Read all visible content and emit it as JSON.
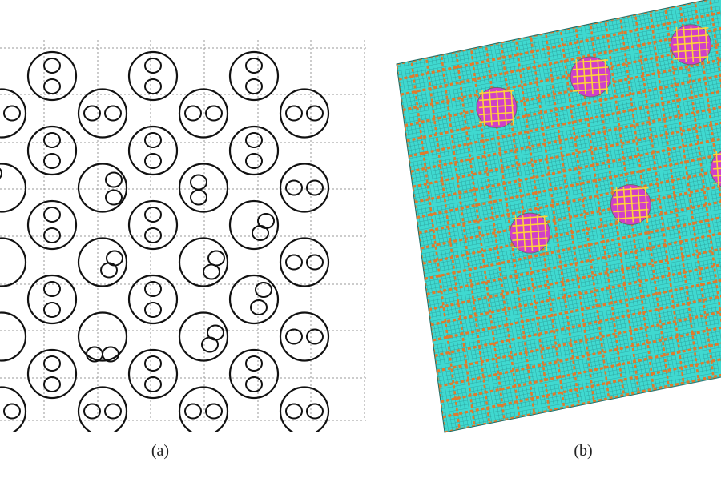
{
  "captions": {
    "a": "(a)",
    "b": "(b)"
  },
  "panel_a": {
    "stroke_color": "#111111",
    "grid_color": "#9a9a9a",
    "cells": [
      {
        "col": 1,
        "row": 0,
        "pins": "v"
      },
      {
        "col": 3,
        "row": 0,
        "pins": "v"
      },
      {
        "col": 5,
        "row": 0,
        "pins": "v"
      },
      {
        "col": 0,
        "row": 1,
        "pins": "h"
      },
      {
        "col": 2,
        "row": 1,
        "pins": "h"
      },
      {
        "col": 4,
        "row": 1,
        "pins": "h"
      },
      {
        "col": 6,
        "row": 1,
        "pins": "h"
      },
      {
        "col": 1,
        "row": 2,
        "pins": "v"
      },
      {
        "col": 3,
        "row": 2,
        "pins": "v"
      },
      {
        "col": 5,
        "row": 2,
        "pins": "v"
      },
      {
        "col": 0,
        "row": 3,
        "pins": "ul"
      },
      {
        "col": 2,
        "row": 3,
        "pins": "r"
      },
      {
        "col": 4,
        "row": 3,
        "pins": "lv"
      },
      {
        "col": 6,
        "row": 3,
        "pins": "h"
      },
      {
        "col": 1,
        "row": 4,
        "pins": "v"
      },
      {
        "col": 3,
        "row": 4,
        "pins": "v"
      },
      {
        "col": 5,
        "row": 4,
        "pins": "dr"
      },
      {
        "col": 0,
        "row": 5,
        "pins": "none"
      },
      {
        "col": 2,
        "row": 5,
        "pins": "dr"
      },
      {
        "col": 4,
        "row": 5,
        "pins": "ur"
      },
      {
        "col": 6,
        "row": 5,
        "pins": "h"
      },
      {
        "col": 1,
        "row": 6,
        "pins": "v"
      },
      {
        "col": 3,
        "row": 6,
        "pins": "v"
      },
      {
        "col": 5,
        "row": 6,
        "pins": "rv"
      },
      {
        "col": 0,
        "row": 7,
        "pins": "none"
      },
      {
        "col": 2,
        "row": 7,
        "pins": "bot"
      },
      {
        "col": 4,
        "row": 7,
        "pins": "dr"
      },
      {
        "col": 6,
        "row": 7,
        "pins": "h"
      },
      {
        "col": 1,
        "row": 8,
        "pins": "v"
      },
      {
        "col": 3,
        "row": 8,
        "pins": "v"
      },
      {
        "col": 5,
        "row": 8,
        "pins": "v"
      },
      {
        "col": 0,
        "row": 9,
        "pins": "h"
      },
      {
        "col": 2,
        "row": 9,
        "pins": "h"
      },
      {
        "col": 4,
        "row": 9,
        "pins": "h"
      },
      {
        "col": 6,
        "row": 9,
        "pins": "h"
      }
    ]
  },
  "panel_b": {
    "colors": {
      "mesh_fill": "#3fd9d0",
      "mesh_line": "#2a9a95",
      "stripe": "#e07a2c",
      "circle_fill": "#d040c8",
      "circle_line": "#ffd23a"
    },
    "circles": [
      {
        "u": 0.28,
        "v": 0.17
      },
      {
        "u": 0.57,
        "v": 0.14
      },
      {
        "u": 0.88,
        "v": 0.11
      },
      {
        "u": 0.33,
        "v": 0.52
      },
      {
        "u": 0.64,
        "v": 0.5
      },
      {
        "u": 0.95,
        "v": 0.46
      }
    ]
  }
}
